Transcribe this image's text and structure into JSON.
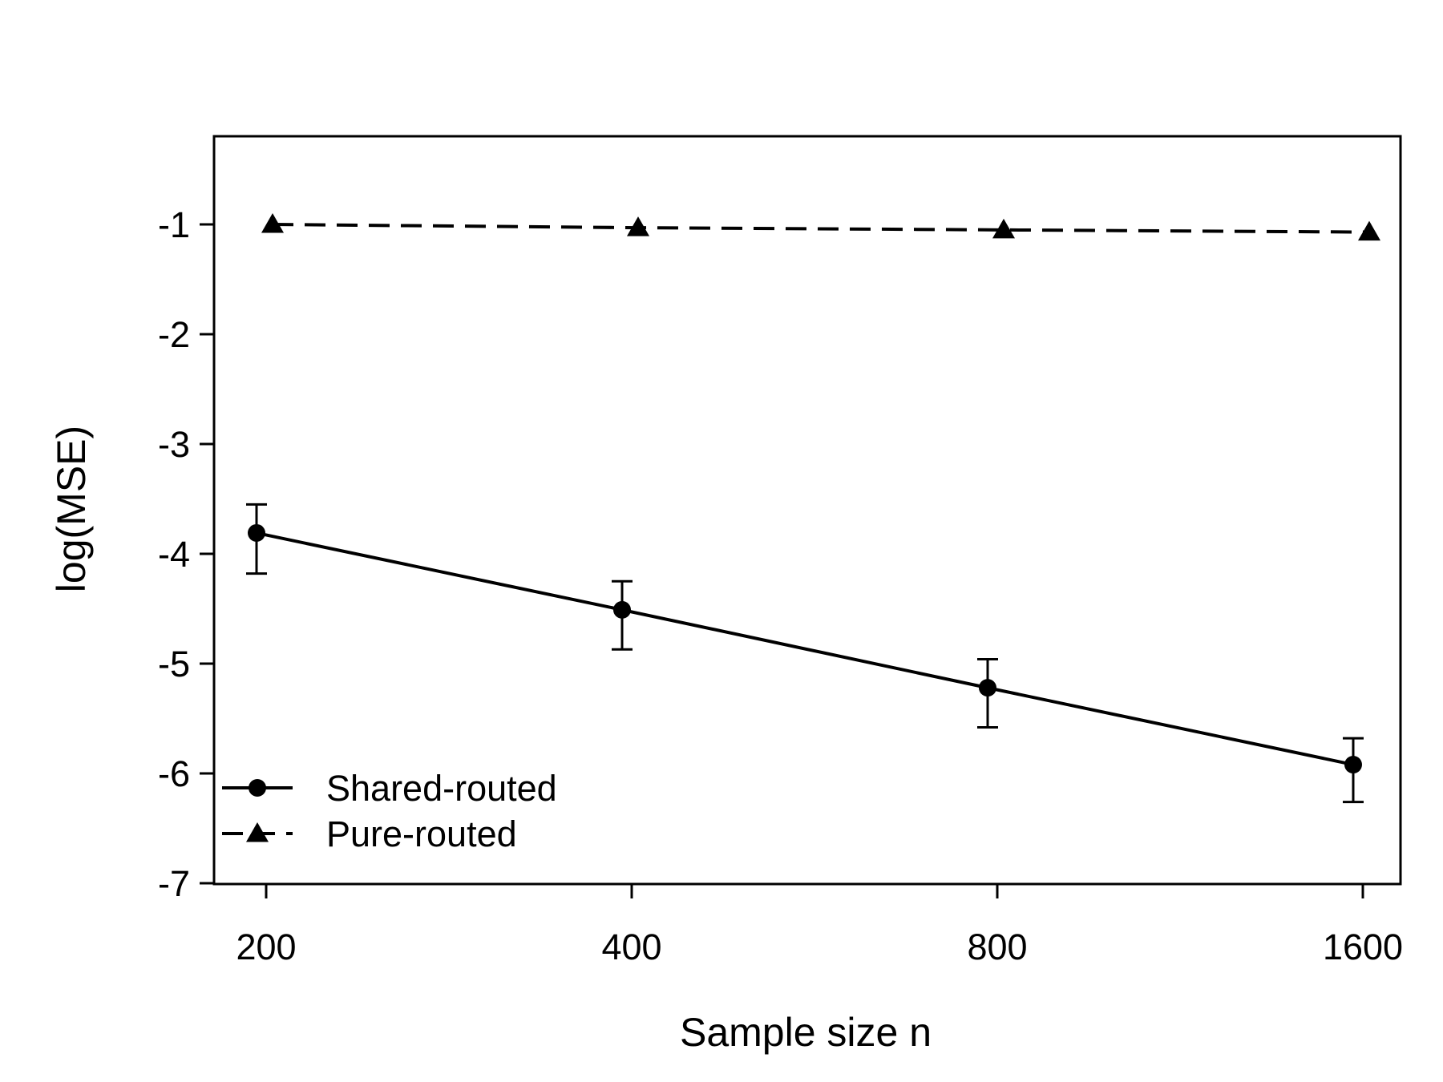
{
  "chart_data": {
    "type": "line",
    "xlabel": "Sample size n",
    "ylabel": "log(MSE)",
    "x": [
      200,
      400,
      800,
      1600
    ],
    "x_scale": "log",
    "x_ticks": [
      "200",
      "400",
      "800",
      "1600"
    ],
    "y_ticks": [
      -1,
      -2,
      -3,
      -4,
      -5,
      -6,
      -7
    ],
    "ylim": [
      -7,
      0.2
    ],
    "grid": false,
    "legend_position": "bottom-left",
    "series": [
      {
        "name": "Shared-routed",
        "marker": "circle",
        "line_style": "solid",
        "values": [
          -3.81,
          -4.51,
          -5.22,
          -5.92
        ],
        "error_lower": [
          -4.18,
          -4.87,
          -5.58,
          -6.26
        ],
        "error_upper": [
          -3.55,
          -4.25,
          -4.96,
          -5.68
        ]
      },
      {
        "name": "Pure-routed",
        "marker": "triangle",
        "line_style": "dashed",
        "values": [
          -1.0,
          -1.03,
          -1.05,
          -1.07
        ]
      }
    ]
  }
}
